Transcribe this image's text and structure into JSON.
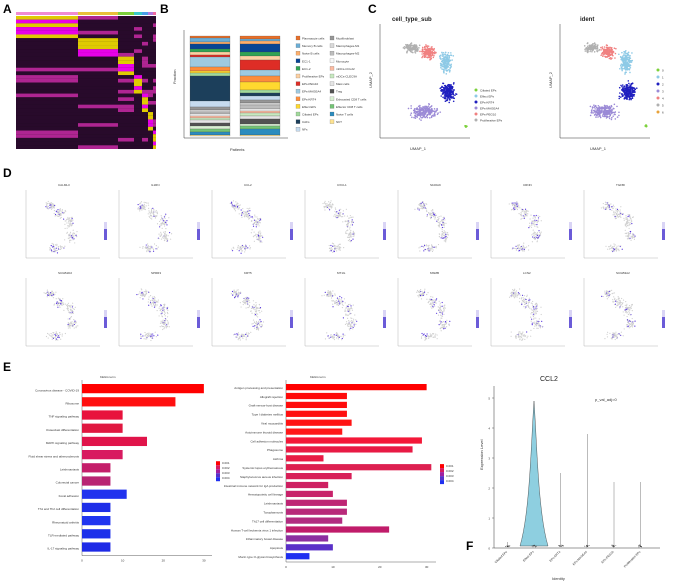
{
  "panel_labels": [
    "A",
    "B",
    "C",
    "D",
    "E",
    "F"
  ],
  "panel_b": {
    "ylabel": "Fraction",
    "xlabel": "Patients",
    "legend": [
      "Plasmacyte cells",
      "Memory B cells",
      "Naive B cells",
      "EC1-1",
      "EC1-2",
      "Proliferative EPs",
      "EPs-PEG10",
      "EPs-MAGEA4",
      "EPs-KRT4",
      "Effect EPs",
      "Ciliated EPs",
      "CAFs",
      "NFs",
      "Myofibroblast",
      "Macrophages-M1",
      "Macrophages-M2",
      "Monocyte",
      "mDCs-CCL22",
      "mDCs-CLEC9A",
      "Mast cells",
      "Treg",
      "Exhausted CD8 T cells",
      "Effector CD8 T cells",
      "Naive T cells",
      "NKT"
    ],
    "colors": [
      "#e8702a",
      "#6baed6",
      "#fdae6b",
      "#084594",
      "#31a354",
      "#fdd0a2",
      "#de2d26",
      "#9ecae1",
      "#fd8d3c",
      "#ffd92f",
      "#a1d99b",
      "#1c3f5b",
      "#c6dbef",
      "#969696",
      "#d9d9d9",
      "#bdbdbd",
      "#f7f7f7",
      "#fcbba1",
      "#c7e9c0",
      "#e5e5e5",
      "#525252",
      "#d9f0d3",
      "#74c476",
      "#2b8cbe",
      "#fee391"
    ]
  },
  "panel_c": {
    "left_title": "cell_type_sub",
    "right_title": "ident",
    "xlabel": "UMAP_1",
    "ylabel": "UMAP_2",
    "left_legend": [
      "Ciliated EPs",
      "Effect EPs",
      "EPs-KRT4",
      "EPs-MAGEA4",
      "EPs-PEG10",
      "Proliferative EPs"
    ],
    "left_colors": [
      "#7cd13b",
      "#8ecae6",
      "#1f1fbf",
      "#9b8ad6",
      "#f08080",
      "#b0b0b0"
    ],
    "right_legend": [
      "0",
      "1",
      "2",
      "3",
      "4",
      "5",
      "6"
    ],
    "right_colors": [
      "#7cd13b",
      "#8ecae6",
      "#1f1fbf",
      "#9b8ad6",
      "#f08080",
      "#b0b0b0",
      "#e8a23a"
    ]
  },
  "panel_d": {
    "genes_row1": [
      "CALML3",
      "IL1RN",
      "CCL2",
      "CXCL1",
      "S100A9",
      "CRNN",
      "TGFBI"
    ],
    "genes_row2": [
      "SCGB1D2",
      "SPRR3",
      "KRT5",
      "MT1G",
      "MSMB",
      "LCN2",
      "SCGB3A2"
    ]
  },
  "panel_e": {
    "left_title": "KEGG term",
    "right_title": "KEGG term",
    "left_terms": [
      "Coronavirus disease - COVID-19",
      "Ribosome",
      "TNF signaling pathway",
      "Osteoclast differentiation",
      "MAPK signaling pathway",
      "Fluid shear stress and atherosclerosis",
      "Leishmaniasis",
      "Colorectal cancer",
      "Focal adhesion",
      "Th1 and Th2 cell differentiation",
      "Rheumatoid arthritis",
      "TLR-mediated pathway",
      "IL-17 signaling pathway"
    ],
    "left_values": [
      30,
      23,
      10,
      10,
      16,
      10,
      7,
      7,
      11,
      7,
      7,
      7,
      7
    ],
    "left_colors": [
      "#ff0000",
      "#ff1010",
      "#e8123c",
      "#e01840",
      "#e0144a",
      "#d81b60",
      "#c41e6a",
      "#b82472",
      "#2233ee",
      "#1e2ee8",
      "#2035f0",
      "#1c30ea",
      "#1e2ae6"
    ],
    "left_ticks": [
      "0",
      "10",
      "20",
      "30"
    ],
    "right_terms": [
      "Antigen processing and presentation",
      "Allograft rejection",
      "Graft-versus-host disease",
      "Type I diabetes mellitus",
      "Viral myocarditis",
      "Autoimmune thyroid disease",
      "Cell adhesion molecules",
      "Phagosome",
      "Asthma",
      "Systemic lupus erythematosus",
      "Staphylococcus aureus infection",
      "Intestinal immune network for IgA production",
      "Hematopoietic cell lineage",
      "Leishmaniasis",
      "Toxoplasmosis",
      "Th17 cell differentiation",
      "Human T-cell leukemia virus 1 infection",
      "Inflammatory bowel disease",
      "Apoptosis",
      "Mucin type O-glycan biosynthesis"
    ],
    "right_values": [
      30,
      13,
      13,
      13,
      14,
      12,
      29,
      27,
      8,
      31,
      14,
      9,
      10,
      13,
      13,
      12,
      22,
      9,
      10,
      5
    ],
    "right_colors": [
      "#ff0000",
      "#ff0a0a",
      "#ff0c0c",
      "#ff1010",
      "#ff1414",
      "#ff1818",
      "#f41838",
      "#e81a44",
      "#e81a44",
      "#dd2050",
      "#d81f58",
      "#ce2062",
      "#c8226a",
      "#be2574",
      "#b82a7a",
      "#b22c80",
      "#c01c6a",
      "#8c2fa0",
      "#5a30c8",
      "#2030f0"
    ],
    "right_ticks": [
      "0",
      "10",
      "20",
      "30"
    ],
    "legend_labels": [
      "0.001",
      "0.002",
      "0.003",
      "0.004"
    ]
  },
  "panel_f": {
    "title": "CCL2",
    "annotation": "p_val_adj=0",
    "ylabel": "Expression Level",
    "xlabel": "Identity",
    "yticks": [
      "0",
      "1",
      "2",
      "3",
      "4",
      "5"
    ],
    "categories": [
      "Ciliated EPs",
      "Effect EPs",
      "EPs-KRT4",
      "EPs-MAGEA4",
      "EPs-PEG10",
      "Proliferative EPs"
    ],
    "max_values": [
      0.2,
      4.9,
      2.5,
      3.8,
      2.2,
      2.2
    ],
    "violin_color": "#8ecfe0"
  }
}
